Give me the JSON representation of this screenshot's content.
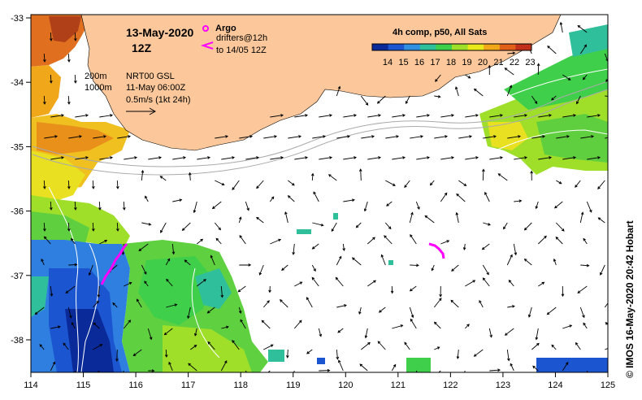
{
  "map": {
    "date": "13-May-2020",
    "time": "12Z",
    "product": "4h comp, p50, All Sats",
    "legend": {
      "argo": "Argo",
      "drifters_line1": "drifters@12h",
      "drifters_line2": "to 14/05 12Z"
    },
    "info": {
      "iso_200": "200m",
      "iso_1000": "1000m",
      "currents_source": "NRT00 GSL",
      "currents_date": "11-May 06:00Z",
      "vector_scale": "0.5m/s (1kt 24h)"
    },
    "credit": "© IMOS 16-May-2020 20:42 Hobart",
    "colorbar": {
      "labels": [
        "14",
        "15",
        "16",
        "17",
        "18",
        "19",
        "20",
        "21",
        "22",
        "23"
      ],
      "colors": [
        "#0a2a9a",
        "#1b55d0",
        "#2f8fe0",
        "#2fbf9a",
        "#3fcf4a",
        "#9fdf2a",
        "#e8e81a",
        "#f0a81a",
        "#e0601a",
        "#c0301a"
      ]
    },
    "lon_ticks": [
      "114",
      "115",
      "116",
      "117",
      "118",
      "119",
      "120",
      "121",
      "122",
      "123",
      "124",
      "125"
    ],
    "lat_ticks": [
      "-33",
      "-34",
      "-35",
      "-36",
      "-37",
      "-38"
    ],
    "land_color": "#fcc89b",
    "argo_color": "#ff00ff"
  }
}
